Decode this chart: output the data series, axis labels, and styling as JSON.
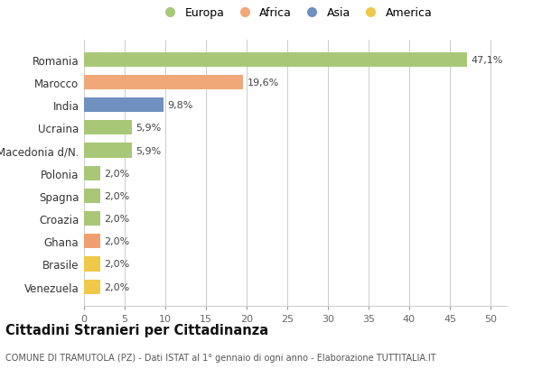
{
  "categories": [
    "Venezuela",
    "Brasile",
    "Ghana",
    "Croazia",
    "Spagna",
    "Polonia",
    "Macedonia d/N.",
    "Ucraina",
    "India",
    "Marocco",
    "Romania"
  ],
  "values": [
    2.0,
    2.0,
    2.0,
    2.0,
    2.0,
    2.0,
    5.9,
    5.9,
    9.8,
    19.6,
    47.1
  ],
  "labels": [
    "2,0%",
    "2,0%",
    "2,0%",
    "2,0%",
    "2,0%",
    "2,0%",
    "5,9%",
    "5,9%",
    "9,8%",
    "19,6%",
    "47,1%"
  ],
  "colors": [
    "#f0c84a",
    "#f0c84a",
    "#f0a070",
    "#a8c878",
    "#a8c878",
    "#a8c878",
    "#a8c878",
    "#a8c878",
    "#7090c0",
    "#f0a878",
    "#a8c878"
  ],
  "legend": [
    {
      "label": "Europa",
      "color": "#a8c878"
    },
    {
      "label": "Africa",
      "color": "#f0a878"
    },
    {
      "label": "Asia",
      "color": "#7090c0"
    },
    {
      "label": "America",
      "color": "#f0c84a"
    }
  ],
  "xlim": [
    0,
    52
  ],
  "xticks": [
    0,
    5,
    10,
    15,
    20,
    25,
    30,
    35,
    40,
    45,
    50
  ],
  "title": "Cittadini Stranieri per Cittadinanza",
  "subtitle": "COMUNE DI TRAMUTOLA (PZ) - Dati ISTAT al 1° gennaio di ogni anno - Elaborazione TUTTITALIA.IT",
  "bg_color": "#ffffff",
  "grid_color": "#cccccc"
}
